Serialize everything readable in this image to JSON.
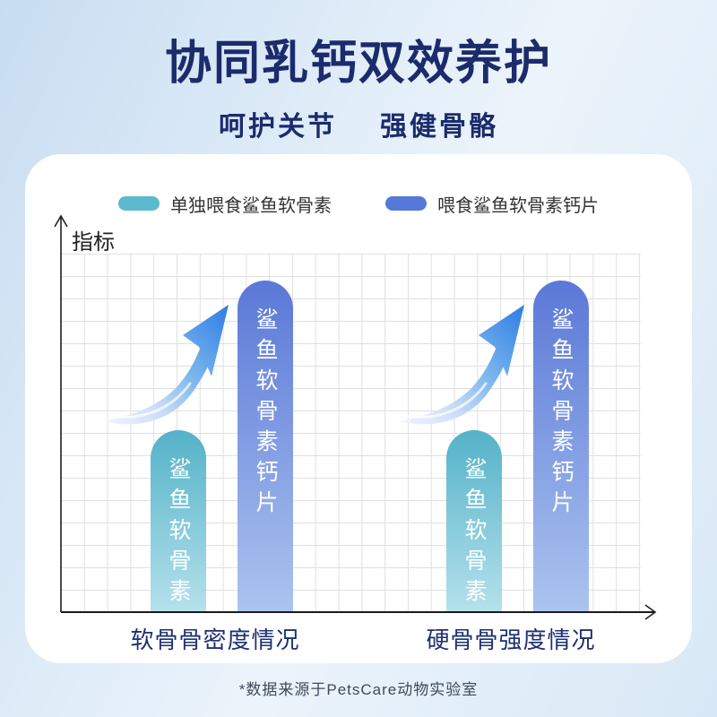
{
  "header": {
    "title": "协同乳钙双效养护",
    "subtitle": [
      "呵护关节",
      "强健骨骼"
    ]
  },
  "chart_data": {
    "type": "bar",
    "title": "",
    "xlabel": "",
    "ylabel": "指标",
    "categories": [
      "软骨骨密度情况",
      "硬骨骨强度情况"
    ],
    "series": [
      {
        "name": "单独喂食鲨鱼软骨素",
        "bar_label": "鲨鱼软骨素",
        "values": [
          55,
          55
        ],
        "color": "#5bbacd",
        "color_top": "#54b2c8",
        "color_bottom": "#b5e1ec"
      },
      {
        "name": "喂食鲨鱼软骨素钙片",
        "bar_label": "鲨鱼软骨素钙片",
        "values": [
          100,
          100
        ],
        "color": "#5679d9",
        "color_top": "#5b78d7",
        "color_bottom": "#abc4ef"
      }
    ],
    "ylim": [
      0,
      108
    ],
    "grid": true,
    "legend_position": "top",
    "annotations": [
      {
        "type": "growth-arrow",
        "category_index": 0
      },
      {
        "type": "growth-arrow",
        "category_index": 1
      }
    ]
  },
  "footer": {
    "source_note": "*数据来源于PetsCare动物实验室"
  },
  "colors": {
    "title_navy": "#1b2b6b",
    "category_label": "#1e3070",
    "axis": "#1a1a1a",
    "grid_line": "#e0e0e0",
    "card_bg": "#ffffff",
    "arrow_blue": "#2e7de4",
    "background_blue": "#cfe3f5"
  }
}
